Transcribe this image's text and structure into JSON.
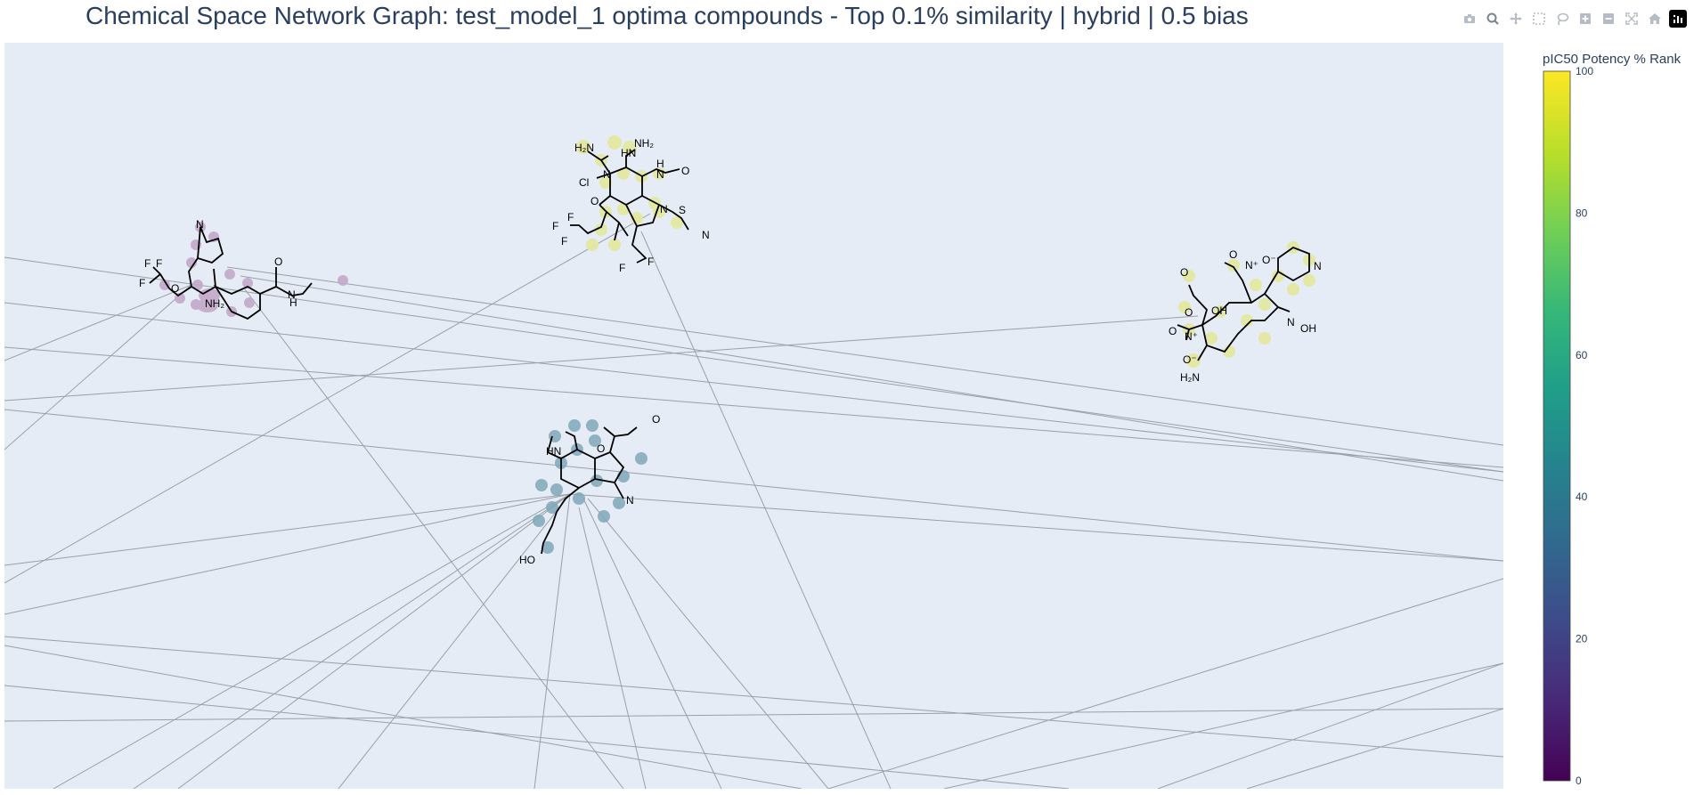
{
  "title": "Chemical Space Network Graph: test_model_1 optima compounds - Top 0.1% similarity | hybrid | 0.5 bias",
  "modebar": [
    {
      "name": "camera-icon",
      "label": "Download plot as a png"
    },
    {
      "name": "zoom-icon",
      "label": "Zoom"
    },
    {
      "name": "pan-icon",
      "label": "Pan"
    },
    {
      "name": "box-select-icon",
      "label": "Box Select"
    },
    {
      "name": "lasso-select-icon",
      "label": "Lasso Select"
    },
    {
      "name": "zoom-in-icon",
      "label": "Zoom in"
    },
    {
      "name": "zoom-out-icon",
      "label": "Zoom out"
    },
    {
      "name": "autoscale-icon",
      "label": "Autoscale"
    },
    {
      "name": "reset-axes-icon",
      "label": "Reset axes"
    },
    {
      "name": "plotly-logo-icon",
      "label": "Produced with Plotly"
    }
  ],
  "colors": {
    "plot_bg": "#E5ECF6",
    "edge": "#9aa0a6",
    "text": "#2a3f5f",
    "molecule_purple": "#c3a9c9",
    "molecule_yellow": "#e3e8a0",
    "molecule_teal": "#7fa8b8"
  },
  "chart_data": {
    "type": "scatter",
    "xaxis_visible": false,
    "yaxis_visible": false,
    "grid": false,
    "colorbar": {
      "title": "pIC50 Potency % Rank",
      "range": [
        0,
        100
      ],
      "ticks": [
        "0",
        "20",
        "40",
        "60",
        "80",
        "100"
      ],
      "colorscale": [
        "#440154",
        "#482878",
        "#3e4989",
        "#31688e",
        "#26828e",
        "#1f9e89",
        "#35b779",
        "#6ece58",
        "#b5de2b",
        "#fde725"
      ]
    },
    "nodes": [
      {
        "id": "purple-indole",
        "rank": 5,
        "x": 0.13,
        "y": 0.69
      },
      {
        "id": "yellow-indole-top",
        "rank": 95,
        "x": 0.43,
        "y": 0.8
      },
      {
        "id": "yellow-indole-right",
        "rank": 98,
        "x": 0.81,
        "y": 0.62
      },
      {
        "id": "teal-indole",
        "rank": 38,
        "x": 0.38,
        "y": 0.43
      }
    ]
  }
}
